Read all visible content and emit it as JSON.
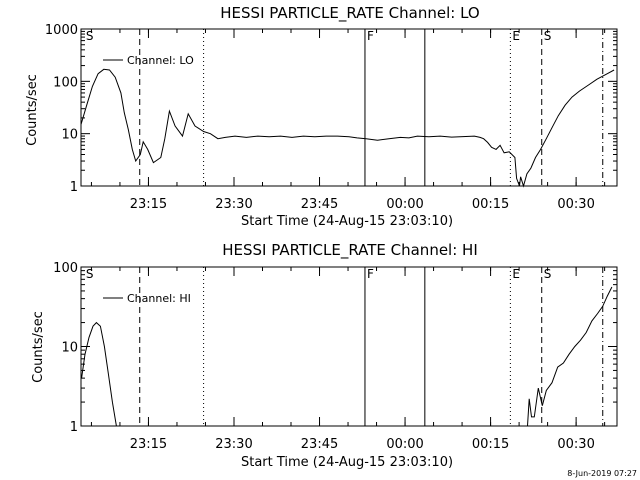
{
  "chart_data": [
    {
      "type": "line",
      "title": "HESSI PARTICLE_RATE Channel: LO",
      "xlabel": "Start Time (24-Aug-15 23:03:10)",
      "ylabel": "Counts/sec",
      "y_scale": "log",
      "ylim": [
        1,
        1000
      ],
      "y_ticks": [
        1,
        10,
        100,
        1000
      ],
      "y_tick_labels": [
        "1",
        "10",
        "100",
        "1000"
      ],
      "x_units": "minutes since 23:03:10",
      "xlim": [
        0,
        94
      ],
      "x_ticks": [
        11.83,
        26.83,
        41.83,
        56.83,
        71.83,
        86.83
      ],
      "x_tick_labels": [
        "23:15",
        "23:30",
        "23:45",
        "00:00",
        "00:15",
        "00:30"
      ],
      "legend": {
        "position": "top-left",
        "entries": [
          "Channel: LO"
        ]
      },
      "series": [
        {
          "name": "Channel: LO",
          "x": [
            0,
            1,
            2,
            3,
            4,
            5,
            6,
            7,
            7.6,
            8.3,
            9,
            9.6,
            10.4,
            10.9,
            11.7,
            12.7,
            14,
            14.7,
            15.5,
            16.5,
            17.8,
            18.8,
            20,
            21.5,
            22.7,
            24,
            25.3,
            27,
            29,
            31,
            33,
            35,
            37,
            39,
            41,
            43,
            45,
            47,
            48.4,
            50,
            52,
            54,
            56,
            57.5,
            59,
            61,
            63,
            65,
            67,
            69,
            70,
            70.6,
            71.3,
            72,
            72.8,
            73.5,
            74.2,
            75.1,
            76.1,
            76.4,
            76.9,
            77.1,
            77.6,
            78.2,
            78.9,
            79.7,
            80.6,
            81.6,
            82.6,
            83.7,
            84.9,
            86.1,
            87.4,
            89,
            90.5,
            92.3,
            93.5
          ],
          "y": [
            15,
            35,
            80,
            140,
            170,
            165,
            120,
            60,
            25,
            12,
            5,
            3,
            4,
            7,
            5,
            2.8,
            3.5,
            8,
            27,
            14,
            9,
            24,
            14,
            11,
            10,
            8,
            8.5,
            9,
            8.5,
            9,
            8.7,
            9,
            8.5,
            9,
            8.7,
            9,
            9,
            8.7,
            8.3,
            8,
            7.5,
            8,
            8.5,
            8.3,
            9,
            8.7,
            9,
            8.6,
            8.8,
            9,
            8.5,
            8,
            6.8,
            5.5,
            5,
            6,
            4.3,
            4.5,
            3.5,
            1.4,
            1.0,
            1.5,
            1.0,
            1.7,
            2.2,
            3.5,
            5,
            8,
            13,
            22,
            35,
            50,
            65,
            85,
            110,
            140,
            165
          ]
        }
      ],
      "flags": [
        {
          "label": "S",
          "x": 0.5,
          "line": "none"
        },
        {
          "label": "",
          "x": 10.3,
          "line": "dashed"
        },
        {
          "label": "",
          "x": 21.5,
          "line": "dotted"
        },
        {
          "label": "F",
          "x": 49.8,
          "line": "solid"
        },
        {
          "label": "",
          "x": 60.3,
          "line": "solid"
        },
        {
          "label": "E",
          "x": 75.3,
          "line": "dotted"
        },
        {
          "label": "S",
          "x": 80.8,
          "line": "dashed"
        },
        {
          "label": "",
          "x": 91.5,
          "line": "dash-dot"
        }
      ]
    },
    {
      "type": "line",
      "title": "HESSI PARTICLE_RATE Channel: HI",
      "xlabel": "Start Time (24-Aug-15 23:03:10)",
      "ylabel": "Counts/sec",
      "y_scale": "log",
      "ylim": [
        1,
        100
      ],
      "y_ticks": [
        1,
        10,
        100
      ],
      "y_tick_labels": [
        "1",
        "10",
        "100"
      ],
      "x_units": "minutes since 23:03:10",
      "xlim": [
        0,
        94
      ],
      "x_ticks": [
        11.83,
        26.83,
        41.83,
        56.83,
        71.83,
        86.83
      ],
      "x_tick_labels": [
        "23:15",
        "23:30",
        "23:45",
        "00:00",
        "00:15",
        "00:30"
      ],
      "legend": {
        "position": "top-left",
        "entries": [
          "Channel: HI"
        ]
      },
      "series": [
        {
          "name": "Channel: HI",
          "x": [
            0.1,
            0.7,
            1.4,
            2.1,
            2.7,
            3.4,
            4.1,
            4.8,
            5.5,
            6.2
          ],
          "y": [
            4,
            8,
            13,
            18,
            20,
            18,
            10,
            4.5,
            2,
            1
          ],
          "x2": [
            78.3,
            78.6,
            79.0,
            79.5,
            80.2,
            80.9,
            81.6,
            82.6,
            83.6,
            84.6,
            85.6,
            86.6,
            87.6,
            88.6,
            89.6,
            90.6,
            91.5,
            92.3,
            93.1
          ],
          "y2": [
            1,
            2.2,
            1.3,
            1.3,
            3,
            1.8,
            2.8,
            3.5,
            5.5,
            6.2,
            8,
            10,
            12,
            15,
            21,
            26,
            32,
            43,
            56
          ]
        }
      ],
      "flags": [
        {
          "label": "S",
          "x": 0.5,
          "line": "none"
        },
        {
          "label": "",
          "x": 10.3,
          "line": "dashed"
        },
        {
          "label": "",
          "x": 21.5,
          "line": "dotted"
        },
        {
          "label": "F",
          "x": 49.8,
          "line": "solid"
        },
        {
          "label": "",
          "x": 60.3,
          "line": "solid"
        },
        {
          "label": "E",
          "x": 75.3,
          "line": "dotted"
        },
        {
          "label": "S",
          "x": 80.8,
          "line": "dashed"
        },
        {
          "label": "",
          "x": 91.5,
          "line": "dash-dot"
        }
      ]
    }
  ],
  "footer": {
    "timestamp": "8-Jun-2019 07:27"
  }
}
